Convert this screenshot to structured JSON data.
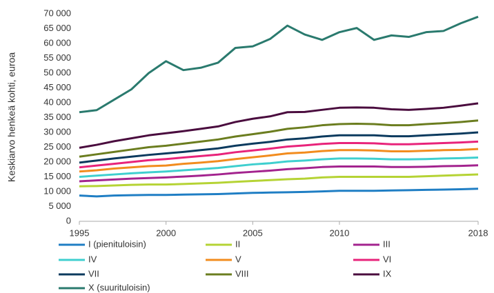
{
  "chart_data": {
    "type": "line",
    "y_label": "Keskiarvo henkeä kohti, euroa",
    "x": [
      1995,
      1996,
      1997,
      1998,
      1999,
      2000,
      2001,
      2002,
      2003,
      2004,
      2005,
      2006,
      2007,
      2008,
      2009,
      2010,
      2011,
      2012,
      2013,
      2014,
      2015,
      2016,
      2017,
      2018
    ],
    "xlim": [
      1995,
      2018
    ],
    "xticks": [
      1995,
      2000,
      2005,
      2010,
      2018
    ],
    "ylim": [
      0,
      70000
    ],
    "yticks": [
      0,
      {
        "value": 5000,
        "label": "5 000"
      },
      {
        "value": 10000,
        "label": "10 000"
      },
      {
        "value": 15000,
        "label": "15 000"
      },
      {
        "value": 20000,
        "label": "20 000"
      },
      {
        "value": 25000,
        "label": "25 000"
      },
      {
        "value": 30000,
        "label": "30 000"
      },
      {
        "value": 35000,
        "label": "35 000"
      },
      {
        "value": 40000,
        "label": "40 000"
      },
      {
        "value": 45000,
        "label": "45 000"
      },
      {
        "value": 50000,
        "label": "50 000"
      },
      {
        "value": 55000,
        "label": "55 000"
      },
      {
        "value": 60000,
        "label": "60 000"
      },
      {
        "value": 65000,
        "label": "65 000"
      },
      {
        "value": 70000,
        "label": "70 000"
      }
    ],
    "series": [
      {
        "name": "I (pienituloisin)",
        "color": "#1f7ec4",
        "values": [
          8700,
          8400,
          8700,
          8800,
          8900,
          8900,
          9000,
          9100,
          9200,
          9400,
          9600,
          9700,
          9800,
          9900,
          10100,
          10300,
          10300,
          10300,
          10400,
          10500,
          10600,
          10700,
          10800,
          11000
        ]
      },
      {
        "name": "II",
        "color": "#b5d334",
        "values": [
          11800,
          11900,
          12100,
          12300,
          12400,
          12400,
          12600,
          12800,
          13000,
          13300,
          13600,
          13900,
          14200,
          14400,
          14800,
          15000,
          15000,
          15000,
          15000,
          15000,
          15200,
          15400,
          15600,
          15800
        ]
      },
      {
        "name": "III",
        "color": "#a3238e",
        "values": [
          13500,
          13800,
          14100,
          14400,
          14600,
          14800,
          15100,
          15400,
          15800,
          16300,
          16700,
          17100,
          17600,
          17900,
          18300,
          18500,
          18500,
          18500,
          18300,
          18300,
          18400,
          18600,
          18700,
          18900
        ]
      },
      {
        "name": "IV",
        "color": "#3fcfcf",
        "values": [
          15000,
          15400,
          15800,
          16200,
          16500,
          16800,
          17200,
          17600,
          18000,
          18600,
          19200,
          19600,
          20200,
          20500,
          20900,
          21200,
          21200,
          21100,
          20900,
          20900,
          21000,
          21200,
          21300,
          21500
        ]
      },
      {
        "name": "V",
        "color": "#f28c1e",
        "values": [
          16800,
          17200,
          17800,
          18200,
          18600,
          18800,
          19400,
          19800,
          20300,
          21000,
          21600,
          22200,
          22900,
          23200,
          23700,
          24000,
          24000,
          23900,
          23600,
          23600,
          23800,
          24000,
          24100,
          24400
        ]
      },
      {
        "name": "VI",
        "color": "#e8237a",
        "values": [
          18200,
          18800,
          19400,
          20000,
          20600,
          21000,
          21500,
          22000,
          22500,
          23300,
          23900,
          24500,
          25200,
          25600,
          26100,
          26400,
          26400,
          26300,
          26000,
          26000,
          26200,
          26400,
          26600,
          26900
        ]
      },
      {
        "name": "VII",
        "color": "#0b3a5e",
        "values": [
          19800,
          20500,
          21200,
          21800,
          22400,
          22900,
          23400,
          24000,
          24600,
          25500,
          26200,
          26800,
          27600,
          28000,
          28600,
          29000,
          29000,
          29000,
          28700,
          28700,
          29000,
          29300,
          29600,
          30000
        ]
      },
      {
        "name": "VIII",
        "color": "#6b7d1f",
        "values": [
          21800,
          22600,
          23400,
          24200,
          25000,
          25500,
          26200,
          26900,
          27600,
          28600,
          29400,
          30200,
          31200,
          31700,
          32400,
          32800,
          32900,
          32800,
          32400,
          32400,
          32800,
          33100,
          33500,
          34000
        ]
      },
      {
        "name": "IX",
        "color": "#4a0c3e",
        "values": [
          24800,
          25800,
          27000,
          28000,
          29000,
          29700,
          30400,
          31200,
          32000,
          33500,
          34600,
          35400,
          36800,
          36900,
          37600,
          38300,
          38400,
          38300,
          37800,
          37600,
          37900,
          38300,
          39000,
          39800
        ]
      },
      {
        "name": "X (suurituloisin)",
        "color": "#2a7a6e",
        "values": [
          36800,
          37500,
          41000,
          44500,
          50000,
          54000,
          51000,
          51800,
          53500,
          58500,
          59000,
          61500,
          66000,
          63000,
          61200,
          63800,
          65200,
          61200,
          62700,
          62200,
          63800,
          64200,
          66800,
          69000
        ]
      }
    ]
  }
}
